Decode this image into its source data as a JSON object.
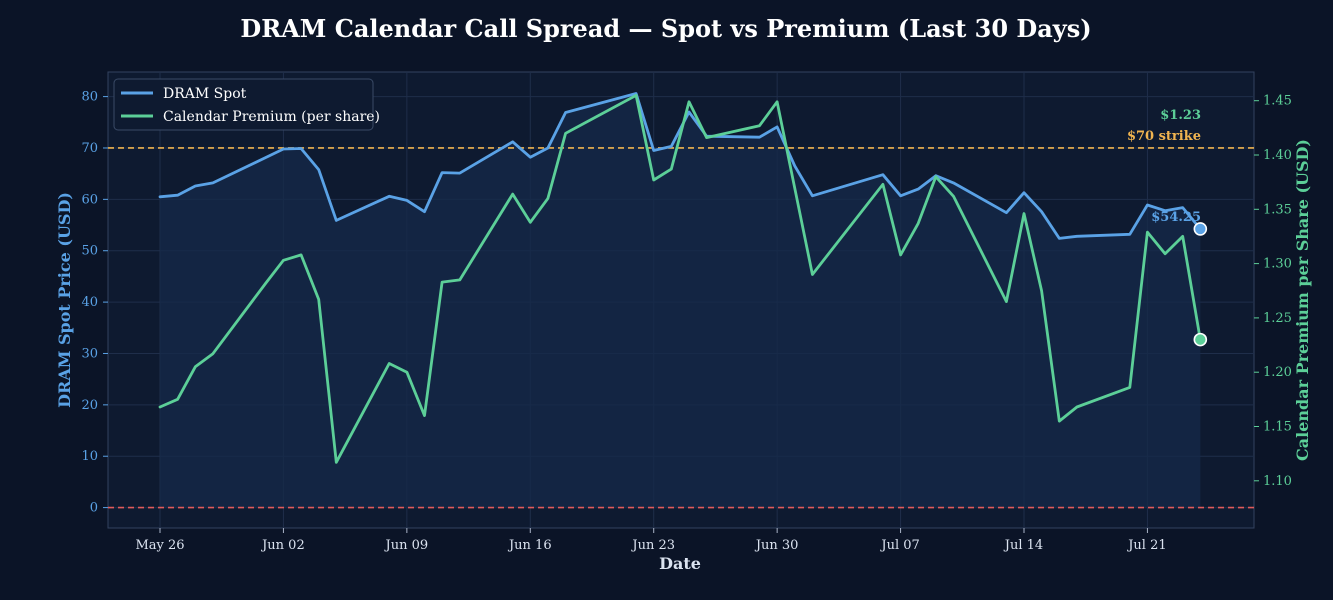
{
  "chart_data": {
    "type": "line",
    "title": "DRAM Calendar Call Spread — Spot vs Premium (Last 30 Days)",
    "xlabel": "Date",
    "ylabel_left": "DRAM Spot Price (USD)",
    "ylabel_right": "Calendar Premium per Share (USD)",
    "x_ticks": [
      "May 26",
      "Jun 02",
      "Jun 09",
      "Jun 16",
      "Jun 23",
      "Jun 30",
      "Jul 07",
      "Jul 14",
      "Jul 21"
    ],
    "x_tick_days": [
      0,
      7,
      14,
      21,
      28,
      35,
      42,
      49,
      56
    ],
    "xlim": [
      -3,
      61
    ],
    "ylim_left": [
      -3,
      85
    ],
    "ylim_right": [
      1.065,
      1.475
    ],
    "yticks_left": [
      "0",
      "10",
      "20",
      "30",
      "40",
      "50",
      "60",
      "70",
      "80"
    ],
    "yticks_right": [
      "1.10",
      "1.15",
      "1.20",
      "1.25",
      "1.30",
      "1.35",
      "1.40",
      "1.45"
    ],
    "grid": true,
    "legend_position": "top-left",
    "colors": {
      "background": "#0b1427",
      "plot_bg": "#0e1a30",
      "spot": "#5aa2e6",
      "premium": "#5ccf98",
      "strike": "#f0b450",
      "zero": "#e05a5a",
      "grid": "#1f2e4a",
      "text": "#ffffff"
    },
    "series": [
      {
        "name": "DRAM Spot",
        "axis": "left",
        "points": [
          [
            0,
            60.5
          ],
          [
            1,
            60.8
          ],
          [
            2,
            62.6
          ],
          [
            3,
            63.2
          ],
          [
            7,
            69.8
          ],
          [
            8,
            69.9
          ],
          [
            9,
            65.8
          ],
          [
            10,
            55.9
          ],
          [
            13,
            60.6
          ],
          [
            14,
            59.8
          ],
          [
            15,
            57.6
          ],
          [
            16,
            65.2
          ],
          [
            17,
            65.1
          ],
          [
            20,
            71.2
          ],
          [
            21,
            68.2
          ],
          [
            22,
            70.0
          ],
          [
            23,
            76.9
          ],
          [
            27,
            80.6
          ],
          [
            28,
            69.5
          ],
          [
            29,
            70.3
          ],
          [
            30,
            77.0
          ],
          [
            31,
            72.3
          ],
          [
            34,
            72.1
          ],
          [
            35,
            74.1
          ],
          [
            36,
            66.5
          ],
          [
            37,
            60.7
          ],
          [
            41,
            64.8
          ],
          [
            42,
            60.7
          ],
          [
            43,
            62.0
          ],
          [
            44,
            64.6
          ],
          [
            45,
            63.2
          ],
          [
            48,
            57.4
          ],
          [
            49,
            61.3
          ],
          [
            50,
            57.6
          ],
          [
            51,
            52.4
          ],
          [
            52,
            52.8
          ],
          [
            55,
            53.2
          ],
          [
            56,
            58.9
          ],
          [
            57,
            57.8
          ],
          [
            58,
            58.4
          ],
          [
            59,
            54.25
          ]
        ]
      },
      {
        "name": "Calendar Premium (per share)",
        "axis": "right",
        "points": [
          [
            0,
            1.168
          ],
          [
            1,
            1.175
          ],
          [
            2,
            1.205
          ],
          [
            3,
            1.217
          ],
          [
            6,
            1.282
          ],
          [
            7,
            1.303
          ],
          [
            8,
            1.308
          ],
          [
            9,
            1.267
          ],
          [
            10,
            1.117
          ],
          [
            13,
            1.208
          ],
          [
            14,
            1.2
          ],
          [
            15,
            1.16
          ],
          [
            16,
            1.283
          ],
          [
            17,
            1.285
          ],
          [
            20,
            1.364
          ],
          [
            21,
            1.338
          ],
          [
            22,
            1.36
          ],
          [
            23,
            1.42
          ],
          [
            27,
            1.455
          ],
          [
            28,
            1.377
          ],
          [
            29,
            1.387
          ],
          [
            30,
            1.449
          ],
          [
            31,
            1.416
          ],
          [
            34,
            1.427
          ],
          [
            35,
            1.449
          ],
          [
            37,
            1.29
          ],
          [
            41,
            1.373
          ],
          [
            42,
            1.308
          ],
          [
            43,
            1.337
          ],
          [
            44,
            1.38
          ],
          [
            45,
            1.362
          ],
          [
            48,
            1.265
          ],
          [
            49,
            1.346
          ],
          [
            50,
            1.275
          ],
          [
            51,
            1.155
          ],
          [
            52,
            1.168
          ],
          [
            55,
            1.186
          ],
          [
            56,
            1.329
          ],
          [
            57,
            1.309
          ],
          [
            58,
            1.325
          ],
          [
            59,
            1.23
          ]
        ]
      }
    ],
    "reference_lines": [
      {
        "axis": "left",
        "value": 70,
        "style": "dashed",
        "color": "#f0b450",
        "label": "$70 strike"
      },
      {
        "axis": "left",
        "value": 0,
        "style": "dashed",
        "color": "#e05a5a"
      }
    ],
    "annotations": {
      "spot_last": "$54.25",
      "premium_last": "$1.23",
      "strike_label": "$70 strike"
    }
  }
}
